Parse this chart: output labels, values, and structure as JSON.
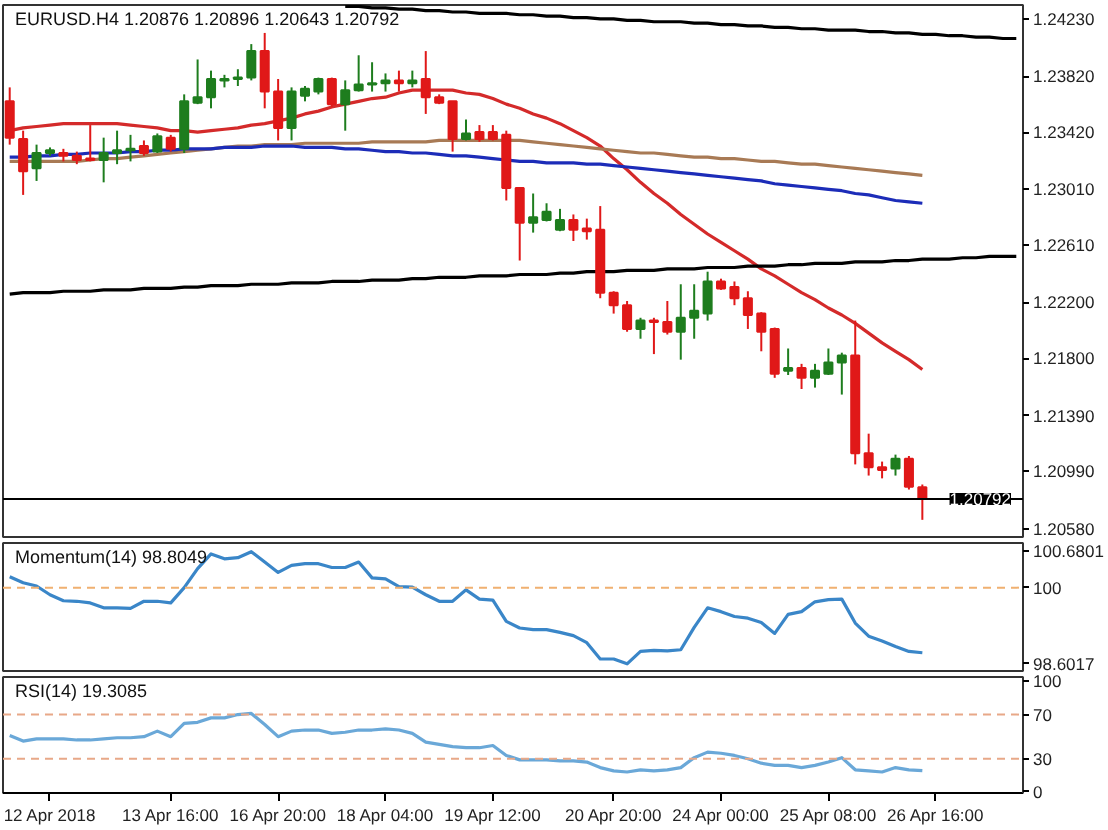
{
  "chart_data": [
    {
      "type": "candlestick",
      "title": "EURUSD.H4 1.20876 1.20896 1.20643 1.20792",
      "categories": [
        null,
        null,
        null,
        null,
        null,
        null,
        null,
        null,
        null,
        null,
        null,
        null,
        null,
        null,
        null,
        null,
        null,
        null,
        null,
        null,
        null,
        null,
        null,
        null,
        null,
        null,
        null,
        null,
        null,
        null,
        null,
        null,
        null,
        null,
        null,
        null,
        null,
        null,
        null,
        null,
        null,
        null,
        null,
        null,
        null,
        null,
        null,
        null,
        null,
        null,
        null,
        null,
        null,
        null,
        null,
        null,
        null,
        null,
        null,
        null,
        null,
        null,
        null,
        null,
        null,
        null,
        null,
        null,
        null,
        null,
        null,
        null,
        null,
        null,
        null,
        null
      ],
      "ohlc": [
        [
          1.2364,
          1.2374,
          1.2333,
          1.2338
        ],
        [
          1.2337,
          1.2343,
          1.2297,
          1.2314
        ],
        [
          1.2316,
          1.2333,
          1.2307,
          1.2327
        ],
        [
          1.2327,
          1.2331,
          1.2325,
          1.2329
        ],
        [
          1.2327,
          1.233,
          1.2321,
          1.2325
        ],
        [
          1.2325,
          1.2328,
          1.2319,
          1.2322
        ],
        [
          1.2323,
          1.2347,
          1.2321,
          1.2322
        ],
        [
          1.2322,
          1.2338,
          1.2306,
          1.2327
        ],
        [
          1.2327,
          1.2343,
          1.2319,
          1.2329
        ],
        [
          1.2329,
          1.234,
          1.2321,
          1.233
        ],
        [
          1.2332,
          1.2336,
          1.2325,
          1.2327
        ],
        [
          1.2328,
          1.2341,
          1.2327,
          1.2339
        ],
        [
          1.2338,
          1.234,
          1.2328,
          1.233
        ],
        [
          1.233,
          1.2369,
          1.2327,
          1.2364
        ],
        [
          1.2363,
          1.2394,
          1.2362,
          1.2367
        ],
        [
          1.2367,
          1.2386,
          1.2359,
          1.238
        ],
        [
          1.2379,
          1.2383,
          1.2374,
          1.238
        ],
        [
          1.238,
          1.2387,
          1.2375,
          1.2381
        ],
        [
          1.2381,
          1.2405,
          1.2379,
          1.24
        ],
        [
          1.24,
          1.2413,
          1.2359,
          1.2371
        ],
        [
          1.2371,
          1.238,
          1.2336,
          1.2345
        ],
        [
          1.2345,
          1.2374,
          1.2336,
          1.2371
        ],
        [
          1.2368,
          1.2375,
          1.2364,
          1.2373
        ],
        [
          1.2371,
          1.2381,
          1.2369,
          1.238
        ],
        [
          1.238,
          1.2381,
          1.236,
          1.2362
        ],
        [
          1.2362,
          1.2379,
          1.2343,
          1.2372
        ],
        [
          1.2372,
          1.2397,
          1.2371,
          1.2376
        ],
        [
          1.2376,
          1.2392,
          1.2371,
          1.2377
        ],
        [
          1.2377,
          1.2384,
          1.2371,
          1.2379
        ],
        [
          1.2379,
          1.2386,
          1.2371,
          1.2377
        ],
        [
          1.2377,
          1.2386,
          1.2374,
          1.2379
        ],
        [
          1.238,
          1.24,
          1.2355,
          1.2367
        ],
        [
          1.2367,
          1.2369,
          1.2362,
          1.2363
        ],
        [
          1.2364,
          1.2364,
          1.2328,
          1.2337
        ],
        [
          1.2337,
          1.2351,
          1.2336,
          1.2341
        ],
        [
          1.2342,
          1.2347,
          1.2335,
          1.2337
        ],
        [
          1.2342,
          1.2347,
          1.2336,
          1.2337
        ],
        [
          1.234,
          1.2343,
          1.2293,
          1.2302
        ],
        [
          1.2302,
          1.2302,
          1.225,
          1.2277
        ],
        [
          1.2277,
          1.2298,
          1.227,
          1.2281
        ],
        [
          1.2279,
          1.2291,
          1.2278,
          1.2285
        ],
        [
          1.2272,
          1.2287,
          1.2271,
          1.2279
        ],
        [
          1.2279,
          1.2283,
          1.2264,
          1.2272
        ],
        [
          1.2273,
          1.228,
          1.2265,
          1.2271
        ],
        [
          1.2272,
          1.2289,
          1.2223,
          1.2227
        ],
        [
          1.2227,
          1.2228,
          1.2212,
          1.2218
        ],
        [
          1.2218,
          1.2221,
          1.2199,
          1.2201
        ],
        [
          1.2201,
          1.2209,
          1.2194,
          1.2207
        ],
        [
          1.2207,
          1.2209,
          1.2183,
          1.2206
        ],
        [
          1.2206,
          1.2221,
          1.2197,
          1.2199
        ],
        [
          1.2199,
          1.2233,
          1.2179,
          1.2209
        ],
        [
          1.2209,
          1.2233,
          1.2194,
          1.2214
        ],
        [
          1.2212,
          1.2242,
          1.2207,
          1.2235
        ],
        [
          1.2235,
          1.2237,
          1.2229,
          1.223
        ],
        [
          1.2231,
          1.2235,
          1.2218,
          1.2223
        ],
        [
          1.2223,
          1.2228,
          1.2201,
          1.2211
        ],
        [
          1.2212,
          1.2213,
          1.2185,
          1.2199
        ],
        [
          1.2201,
          1.2202,
          1.2166,
          1.2169
        ],
        [
          1.2171,
          1.2187,
          1.2168,
          1.2173
        ],
        [
          1.2173,
          1.2176,
          1.2158,
          1.2166
        ],
        [
          1.2166,
          1.2176,
          1.2159,
          1.2171
        ],
        [
          1.2169,
          1.2187,
          1.2168,
          1.2177
        ],
        [
          1.2177,
          1.2184,
          1.2154,
          1.2182
        ],
        [
          1.2182,
          1.2207,
          1.2104,
          1.2112
        ],
        [
          1.2112,
          1.2126,
          1.2096,
          1.2102
        ],
        [
          1.2102,
          1.2106,
          1.2094,
          1.21
        ],
        [
          1.2101,
          1.2111,
          1.2096,
          1.2108
        ],
        [
          1.2108,
          1.211,
          1.2086,
          1.2088
        ],
        [
          1.20876,
          1.20896,
          1.20643,
          1.20792
        ],
        null,
        null,
        null,
        null,
        null,
        null,
        null
      ],
      "series": [
        {
          "type": "line",
          "color": "#d42a2a",
          "values": [
            1.2343,
            1.2345,
            1.2346,
            1.2347,
            1.2348,
            1.2348,
            1.2348,
            1.2348,
            1.2348,
            1.2347,
            1.2346,
            1.2345,
            1.2343,
            1.2343,
            1.2342,
            1.2343,
            1.2344,
            1.2345,
            1.2347,
            1.2348,
            1.235,
            1.2352,
            1.2355,
            1.2357,
            1.236,
            1.2362,
            1.2364,
            1.2366,
            1.2367,
            1.237,
            1.2372,
            1.2372,
            1.2372,
            1.2372,
            1.237,
            1.2369,
            1.2366,
            1.2362,
            1.2359,
            1.2355,
            1.2352,
            1.2348,
            1.2343,
            1.2338,
            1.2332,
            1.2323,
            1.2315,
            1.2306,
            1.2298,
            1.2291,
            1.2283,
            1.2276,
            1.2269,
            1.2263,
            1.2257,
            1.2251,
            1.2244,
            1.2239,
            1.2233,
            1.2227,
            1.2222,
            1.2216,
            1.2211,
            1.2205,
            1.2198,
            1.2191,
            1.2185,
            1.2179,
            1.2172,
            null,
            null,
            null,
            null,
            null,
            null,
            null
          ]
        },
        {
          "type": "line",
          "color": "#a87a55",
          "values": [
            1.2321,
            1.2321,
            1.2321,
            1.2321,
            1.2321,
            1.2321,
            1.2322,
            1.2323,
            1.2323,
            1.2324,
            1.2325,
            1.2326,
            1.2327,
            1.2328,
            1.2329,
            1.233,
            1.2331,
            1.2332,
            1.2332,
            1.2333,
            1.2333,
            1.2333,
            1.2334,
            1.2334,
            1.2334,
            1.2334,
            1.2334,
            1.2335,
            1.2335,
            1.2335,
            1.2335,
            1.2335,
            1.2336,
            1.2336,
            1.2336,
            1.2336,
            1.2336,
            1.2336,
            1.2336,
            1.2335,
            1.2334,
            1.2333,
            1.2332,
            1.2331,
            1.233,
            1.2329,
            1.2328,
            1.2327,
            1.2327,
            1.2326,
            1.2325,
            1.2324,
            1.2324,
            1.2323,
            1.2323,
            1.2322,
            1.2321,
            1.2321,
            1.232,
            1.2319,
            1.2319,
            1.2318,
            1.2317,
            1.2316,
            1.2315,
            1.2314,
            1.2313,
            1.2312,
            1.2311,
            null,
            null,
            null,
            null,
            null,
            null,
            null
          ]
        },
        {
          "type": "line",
          "color": "#1c2cb8",
          "values": [
            1.2324,
            1.2324,
            1.2325,
            1.2325,
            1.2326,
            1.2326,
            1.2327,
            1.2327,
            1.2327,
            1.2328,
            1.2328,
            1.2329,
            1.2329,
            1.233,
            1.233,
            1.233,
            1.2331,
            1.2331,
            1.2331,
            1.2332,
            1.2332,
            1.2332,
            1.2331,
            1.2331,
            1.2331,
            1.233,
            1.233,
            1.2329,
            1.2328,
            1.2328,
            1.2327,
            1.2327,
            1.2326,
            1.2325,
            1.2325,
            1.2324,
            1.2323,
            1.2322,
            1.2321,
            1.2321,
            1.232,
            1.232,
            1.232,
            1.2319,
            1.2319,
            1.2318,
            1.2317,
            1.2316,
            1.2315,
            1.2314,
            1.2313,
            1.2312,
            1.2311,
            1.231,
            1.2309,
            1.2308,
            1.2307,
            1.2305,
            1.2304,
            1.2303,
            1.2302,
            1.2301,
            1.23,
            1.2298,
            1.2297,
            1.2295,
            1.2293,
            1.2292,
            1.2291,
            null,
            null,
            null,
            null,
            null,
            null,
            null
          ]
        },
        {
          "type": "line",
          "color": "#000000",
          "values": [
            null,
            null,
            null,
            null,
            null,
            null,
            null,
            null,
            null,
            null,
            null,
            null,
            null,
            null,
            null,
            null,
            null,
            null,
            null,
            null,
            null,
            null,
            null,
            null,
            null,
            1.2432,
            1.2432,
            1.2431,
            1.2431,
            1.243,
            1.243,
            1.2429,
            1.2429,
            1.2428,
            1.2428,
            1.2427,
            1.2427,
            1.2427,
            1.2426,
            1.2426,
            1.2425,
            1.2425,
            1.2424,
            1.2424,
            1.2423,
            1.2423,
            1.2422,
            1.2422,
            1.2421,
            1.2421,
            1.2421,
            1.242,
            1.242,
            1.2419,
            1.2419,
            1.2418,
            1.2418,
            1.2417,
            1.2417,
            1.2416,
            1.2416,
            1.2415,
            1.2415,
            1.2415,
            1.2414,
            1.2414,
            1.2413,
            1.2413,
            1.2412,
            1.2412,
            1.2411,
            1.2411,
            1.241,
            1.241,
            1.2409,
            1.2409
          ]
        },
        {
          "type": "line",
          "color": "#000000",
          "values": [
            1.2226,
            1.2227,
            1.2227,
            1.2227,
            1.2228,
            1.2228,
            1.2228,
            1.2229,
            1.2229,
            1.2229,
            1.223,
            1.223,
            1.223,
            1.2231,
            1.2231,
            1.2232,
            1.2232,
            1.2232,
            1.2233,
            1.2233,
            1.2233,
            1.2234,
            1.2234,
            1.2234,
            1.2235,
            1.2235,
            1.2235,
            1.2236,
            1.2236,
            1.2236,
            1.2237,
            1.2237,
            1.2238,
            1.2238,
            1.2238,
            1.2239,
            1.2239,
            1.2239,
            1.224,
            1.224,
            1.224,
            1.2241,
            1.2241,
            1.2242,
            1.2242,
            1.2242,
            1.2243,
            1.2243,
            1.2243,
            1.2244,
            1.2244,
            1.2244,
            1.2245,
            1.2245,
            1.2245,
            1.2246,
            1.2246,
            1.2246,
            1.2247,
            1.2247,
            1.2248,
            1.2248,
            1.2248,
            1.2249,
            1.2249,
            1.2249,
            1.225,
            1.225,
            1.2251,
            1.2251,
            1.2251,
            1.2252,
            1.2252,
            1.2253,
            1.2253,
            1.2253
          ]
        }
      ],
      "ref_lines": [
        {
          "axis": "y",
          "value": 1.20792,
          "label": "1.20792",
          "color": "#000000"
        }
      ],
      "ylim": [
        1.2052,
        1.2433
      ],
      "yticks": [
        {
          "value": 1.2423,
          "label": "1.24230"
        },
        {
          "value": 1.2382,
          "label": "1.23820"
        },
        {
          "value": 1.2342,
          "label": "1.23420"
        },
        {
          "value": 1.2301,
          "label": "1.23010"
        },
        {
          "value": 1.2261,
          "label": "1.22610"
        },
        {
          "value": 1.222,
          "label": "1.22200"
        },
        {
          "value": 1.218,
          "label": "1.21800"
        },
        {
          "value": 1.2139,
          "label": "1.21390"
        },
        {
          "value": 1.2099,
          "label": "1.20990"
        },
        {
          "value": 1.2058,
          "label": "1.20580"
        }
      ],
      "tick_labels": "y",
      "grid": false
    },
    {
      "type": "line",
      "title": "Momentum(14) 98.8049",
      "categories": [
        null,
        null,
        null,
        null,
        null,
        null,
        null,
        null,
        null,
        null,
        null,
        null,
        null,
        null,
        null,
        null,
        null,
        null,
        null,
        null,
        null,
        null,
        null,
        null,
        null,
        null,
        null,
        null,
        null,
        null,
        null,
        null,
        null,
        null,
        null,
        null,
        null,
        null,
        null,
        null,
        null,
        null,
        null,
        null,
        null,
        null,
        null,
        null,
        null,
        null,
        null,
        null,
        null,
        null,
        null,
        null,
        null,
        null,
        null,
        null,
        null,
        null,
        null,
        null,
        null,
        null,
        null,
        null,
        null,
        null,
        null,
        null,
        null,
        null,
        null,
        null
      ],
      "series": [
        {
          "color": "#3a86c8",
          "values": [
            100.2,
            100.09,
            100.03,
            99.87,
            99.76,
            99.75,
            99.72,
            99.63,
            99.63,
            99.62,
            99.75,
            99.75,
            99.72,
            100.0,
            100.35,
            100.62,
            100.53,
            100.55,
            100.66,
            100.47,
            100.28,
            100.41,
            100.44,
            100.44,
            100.37,
            100.37,
            100.47,
            100.18,
            100.16,
            100.02,
            100.01,
            99.87,
            99.75,
            99.75,
            99.96,
            99.79,
            99.77,
            99.38,
            99.26,
            99.23,
            99.23,
            99.18,
            99.12,
            98.99,
            98.69,
            98.69,
            98.6017,
            98.83,
            98.85,
            98.84,
            98.86,
            99.27,
            99.63,
            99.56,
            99.47,
            99.44,
            99.36,
            99.16,
            99.51,
            99.56,
            99.74,
            99.78,
            99.79,
            99.35,
            99.11,
            99.02,
            98.92,
            98.83,
            98.8049,
            null,
            null,
            null,
            null,
            null,
            null,
            null
          ]
        }
      ],
      "ref_lines": [
        {
          "axis": "y",
          "value": 100,
          "color": "#f0b070",
          "line_style": "dashed"
        }
      ],
      "ylim": [
        98.47,
        100.82
      ],
      "yticks": [
        100.6801,
        100,
        98.6017
      ],
      "tick_labels": "y",
      "grid": false
    },
    {
      "type": "line",
      "title": "RSI(14) 19.3085",
      "categories": [
        null,
        null,
        null,
        "12 Apr 2018",
        null,
        null,
        null,
        null,
        null,
        null,
        null,
        null,
        "13 Apr 16:00",
        null,
        null,
        null,
        null,
        null,
        null,
        null,
        "16 Apr 20:00",
        null,
        null,
        null,
        null,
        null,
        null,
        null,
        "18 Apr 04:00",
        null,
        null,
        null,
        null,
        null,
        null,
        null,
        "19 Apr 12:00",
        null,
        null,
        null,
        null,
        null,
        null,
        null,
        null,
        "20 Apr 20:00",
        null,
        null,
        null,
        null,
        null,
        null,
        null,
        "24 Apr 00:00",
        null,
        null,
        null,
        null,
        null,
        null,
        null,
        "25 Apr 08:00",
        null,
        null,
        null,
        null,
        null,
        null,
        null,
        "26 Apr 16:00",
        null,
        null,
        null,
        null,
        null,
        null
      ],
      "series": [
        {
          "color": "#6aa8d8",
          "values": [
            51,
            46,
            48,
            48,
            48,
            47,
            47,
            48,
            49,
            49,
            50,
            55,
            50,
            62,
            63,
            67,
            67,
            70,
            71,
            61,
            50,
            55,
            56,
            56,
            53,
            54,
            56,
            56,
            57,
            56,
            53,
            45,
            43,
            41,
            40,
            40,
            42,
            33,
            29,
            29,
            29,
            28,
            28,
            27,
            22,
            19,
            18,
            20,
            19,
            20,
            22,
            31,
            36,
            35,
            33,
            30,
            26,
            24,
            24,
            22,
            24,
            27,
            31,
            20,
            19,
            18,
            22,
            20,
            19.3085,
            null,
            null,
            null,
            null,
            null,
            null,
            null
          ]
        }
      ],
      "ref_lines": [
        {
          "axis": "y",
          "value": 70,
          "color": "#e8a888",
          "line_style": "dashed"
        },
        {
          "axis": "y",
          "value": 30,
          "color": "#e8a888",
          "line_style": "dashed"
        }
      ],
      "ylim": [
        -1,
        104
      ],
      "yticks": [
        100,
        70,
        30,
        0
      ],
      "grid": false
    }
  ]
}
